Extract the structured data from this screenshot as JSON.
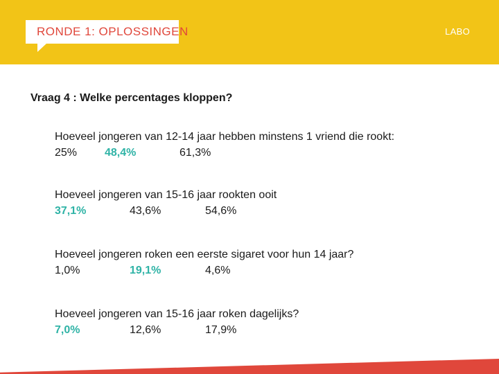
{
  "header": {
    "title": "RONDE 1: OPLOSSINGEN",
    "tag": "LABO"
  },
  "question_title": "Vraag 4 : Welke percentages kloppen?",
  "items": [
    {
      "question": "Hoeveel jongeren van 12-14 jaar hebben minstens 1 vriend die rookt:",
      "options": [
        {
          "label": "25%",
          "correct": false
        },
        {
          "label": "48,4%",
          "correct": true
        },
        {
          "label": "61,3%",
          "correct": false
        }
      ]
    },
    {
      "question": "Hoeveel jongeren van 15-16 jaar rookten ooit",
      "options": [
        {
          "label": "37,1%",
          "correct": true
        },
        {
          "label": "43,6%",
          "correct": false
        },
        {
          "label": "54,6%",
          "correct": false
        }
      ]
    },
    {
      "question": "Hoeveel jongeren roken een eerste sigaret voor hun 14 jaar?",
      "options": [
        {
          "label": "1,0%",
          "correct": false
        },
        {
          "label": "19,1%",
          "correct": true
        },
        {
          "label": "4,6%",
          "correct": false
        }
      ]
    },
    {
      "question": "Hoeveel jongeren van 15-16 jaar roken dagelijks?",
      "options": [
        {
          "label": "7,0%",
          "correct": true
        },
        {
          "label": "12,6%",
          "correct": false
        },
        {
          "label": "17,9%",
          "correct": false
        }
      ]
    }
  ],
  "colors": {
    "header_yellow": "#f2c417",
    "title_red": "#e0473b",
    "correct_teal": "#2fb3a6"
  }
}
